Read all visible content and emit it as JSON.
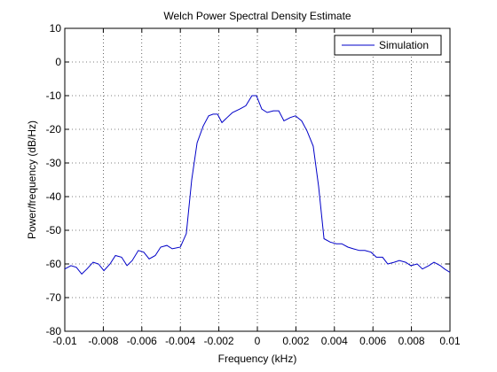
{
  "chart_data": {
    "type": "line",
    "title": "Welch Power Spectral Density Estimate",
    "x_label": "Frequency (kHz)",
    "y_label": "Power/frequency (dB/Hz)",
    "x": [
      -0.01,
      -0.00968,
      -0.0094,
      -0.00912,
      -0.00885,
      -0.00853,
      -0.00825,
      -0.00797,
      -0.00765,
      -0.00737,
      -0.00705,
      -0.00677,
      -0.0065,
      -0.00618,
      -0.0059,
      -0.00562,
      -0.0053,
      -0.00502,
      -0.0047,
      -0.00442,
      -0.004,
      -0.00369,
      -0.00341,
      -0.00313,
      -0.00281,
      -0.00253,
      -0.0023,
      -0.00207,
      -0.00184,
      -0.00157,
      -0.00129,
      -0.00092,
      -0.0006,
      -0.00028,
      -5e-05,
      0.00023,
      0.00051,
      0.00083,
      0.00111,
      0.00138,
      0.00171,
      0.00198,
      0.0023,
      0.00258,
      0.0029,
      0.00318,
      0.00346,
      0.00378,
      0.0041,
      0.00438,
      0.0047,
      0.00498,
      0.0053,
      0.00558,
      0.0059,
      0.00618,
      0.0065,
      0.00677,
      0.0071,
      0.00737,
      0.0077,
      0.00797,
      0.0083,
      0.00857,
      0.0089,
      0.00917,
      0.0095,
      0.00972,
      0.01
    ],
    "series": [
      {
        "name": "Simulation",
        "color": "#0000c8",
        "values": [
          -61.5,
          -60.5,
          -61,
          -63,
          -61.5,
          -59.5,
          -60,
          -62,
          -60,
          -57.5,
          -58,
          -60.5,
          -59,
          -56,
          -56.5,
          -58.5,
          -57.5,
          -55,
          -54.5,
          -55.5,
          -55,
          -51,
          -35,
          -24,
          -19,
          -16,
          -15.5,
          -15.5,
          -18,
          -16.5,
          -15,
          -14,
          -13,
          -10,
          -10,
          -14,
          -15,
          -14.5,
          -14.5,
          -17.5,
          -16.5,
          -16,
          -17.5,
          -20.5,
          -25,
          -37,
          -52.5,
          -53.5,
          -54,
          -54,
          -55,
          -55.5,
          -56,
          -56,
          -56.5,
          -58,
          -58,
          -60,
          -59.5,
          -59,
          -59.5,
          -60.5,
          -60,
          -61.5,
          -60.5,
          -59.5,
          -60.5,
          -61.5,
          -62.5
        ]
      }
    ],
    "xlim": [
      -0.01,
      0.01
    ],
    "xticks": [
      -0.01,
      -0.008,
      -0.006,
      -0.004,
      -0.002,
      0,
      0.002,
      0.004,
      0.006,
      0.008,
      0.01
    ],
    "ylim": [
      -80,
      10
    ],
    "yticks": [
      -80,
      -70,
      -60,
      -50,
      -40,
      -30,
      -20,
      -10,
      0,
      10
    ],
    "grid": true,
    "legend": "upper-right"
  }
}
